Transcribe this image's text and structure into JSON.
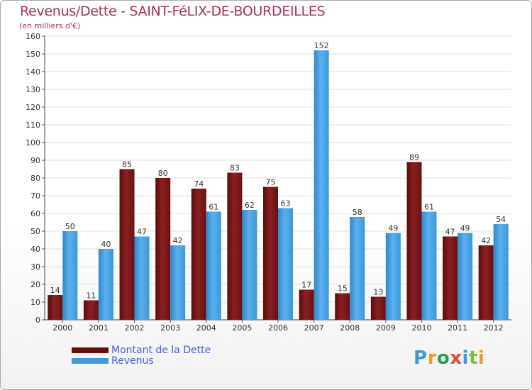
{
  "chart_data": {
    "type": "bar",
    "title": "Revenus/Dette - SAINT-FéLIX-DE-BOURDEILLES",
    "subtitle": "(en milliers d'€)",
    "categories": [
      "2000",
      "2001",
      "2002",
      "2003",
      "2004",
      "2005",
      "2006",
      "2007",
      "2008",
      "2009",
      "2010",
      "2011",
      "2012"
    ],
    "series": [
      {
        "name": "Montant de la Dette",
        "color": "#7a1010",
        "values": [
          14,
          11,
          85,
          80,
          74,
          83,
          75,
          17,
          15,
          13,
          89,
          47,
          42
        ]
      },
      {
        "name": "Revenus",
        "color": "#3a9be0",
        "values": [
          50,
          40,
          47,
          42,
          61,
          62,
          63,
          152,
          58,
          49,
          61,
          49,
          54
        ]
      }
    ],
    "ylim": [
      0,
      160
    ],
    "yticks": [
      0,
      10,
      20,
      30,
      40,
      50,
      60,
      70,
      80,
      90,
      100,
      110,
      120,
      130,
      140,
      150,
      160
    ],
    "grid": true,
    "legend_position": "bottom-left"
  },
  "branding": {
    "logo_text": "Proxiti",
    "logo_colors": [
      "#3a9be0",
      "#e8a020",
      "#2a9d4a",
      "#e04a3a",
      "#3a9be0",
      "#7bbf3a",
      "#e8a020"
    ]
  }
}
